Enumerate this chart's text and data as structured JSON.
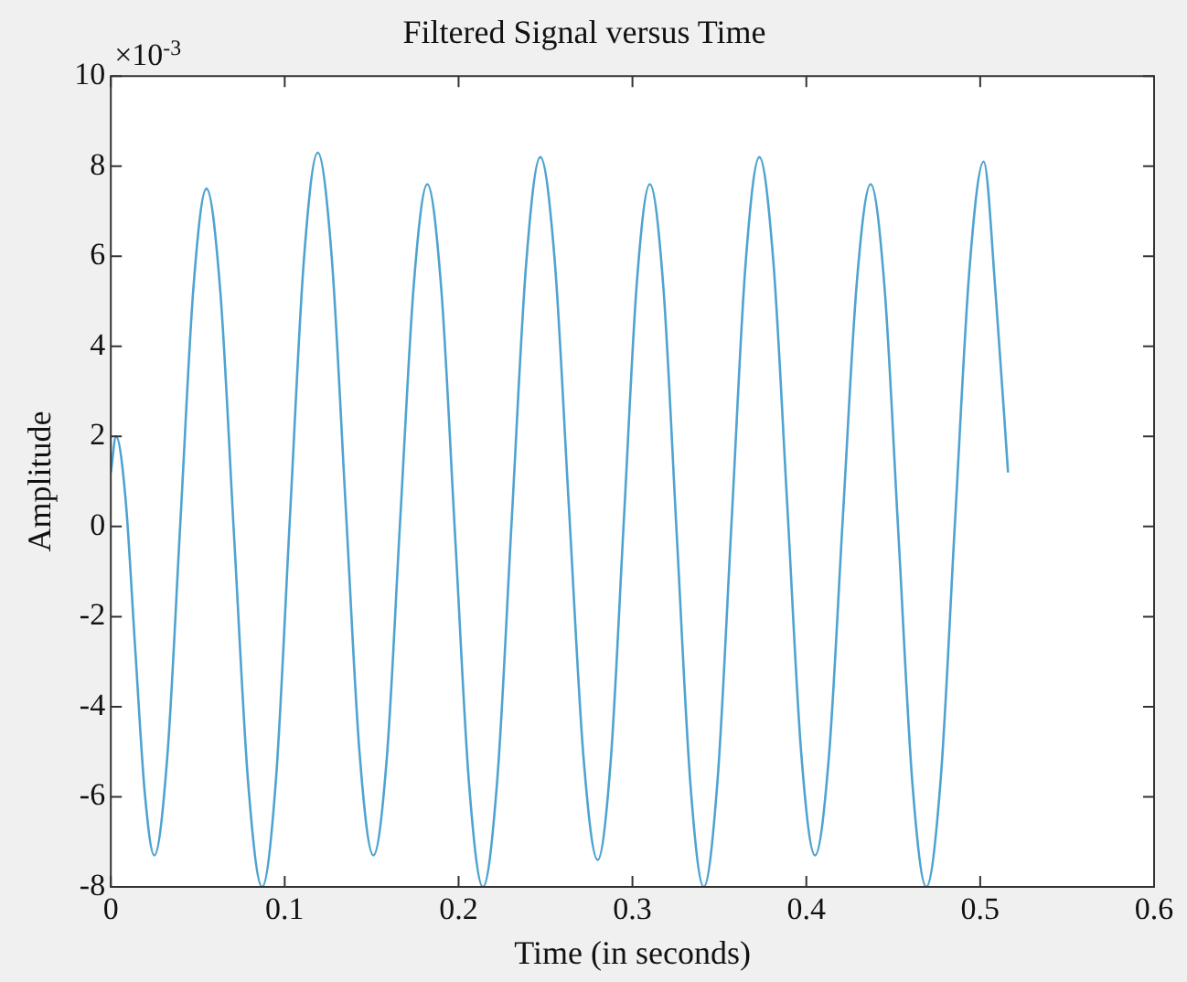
{
  "chart_data": {
    "type": "line",
    "title": "Filtered Signal versus Time",
    "xlabel": "Time (in seconds)",
    "ylabel": "Amplitude",
    "annotations": [
      "×10$^{-3}$"
    ],
    "xlim": [
      0,
      0.6
    ],
    "xticks": [
      0,
      0.1,
      0.2,
      0.3,
      0.4,
      0.5,
      0.6
    ],
    "ylim": [
      -8,
      10
    ],
    "yticks": [
      -8,
      -6,
      -4,
      -2,
      0,
      2,
      4,
      6,
      8,
      10
    ],
    "grid": false,
    "legend": false,
    "marker": "none",
    "line_style": "solid",
    "series": [
      {
        "color": "#4fa3d1",
        "x": [
          0,
          0.003,
          0.0085,
          0.014,
          0.0195,
          0.025,
          0.0325,
          0.04,
          0.0475,
          0.055,
          0.063,
          0.071,
          0.079,
          0.087,
          0.095,
          0.103,
          0.111,
          0.119,
          0.127,
          0.135,
          0.143,
          0.151,
          0.1588,
          0.1665,
          0.1743,
          0.182,
          0.19,
          0.198,
          0.206,
          0.214,
          0.2223,
          0.2305,
          0.2388,
          0.247,
          0.2553,
          0.2635,
          0.2718,
          0.28,
          0.2875,
          0.295,
          0.3025,
          0.31,
          0.3178,
          0.3255,
          0.3333,
          0.341,
          0.349,
          0.357,
          0.365,
          0.373,
          0.381,
          0.389,
          0.397,
          0.405,
          0.413,
          0.421,
          0.429,
          0.437,
          0.445,
          0.453,
          0.461,
          0.469,
          0.4773,
          0.4855,
          0.4938,
          0.502,
          0.509,
          0.516
        ],
        "values": [
          1.2,
          2.0,
          0.6,
          -2.7,
          -5.9,
          -7.3,
          -5.1,
          0.1,
          5.3,
          7.5,
          5.2,
          -0.3,
          -5.7,
          -8.0,
          -5.6,
          0.2,
          5.9,
          8.3,
          6.0,
          0.5,
          -5.0,
          -7.3,
          -5.1,
          0.2,
          5.4,
          7.6,
          5.3,
          -0.2,
          -5.7,
          -8.0,
          -5.6,
          0.1,
          5.8,
          8.2,
          5.9,
          0.4,
          -5.1,
          -7.4,
          -5.2,
          0.1,
          5.4,
          7.6,
          5.3,
          -0.2,
          -5.7,
          -8.0,
          -5.6,
          0.1,
          5.8,
          8.2,
          5.9,
          0.5,
          -5.0,
          -7.3,
          -5.1,
          0.2,
          5.4,
          7.6,
          5.3,
          -0.2,
          -5.7,
          -8.0,
          -5.6,
          0.1,
          5.7,
          8.1,
          5.1,
          1.2
        ]
      }
    ]
  }
}
